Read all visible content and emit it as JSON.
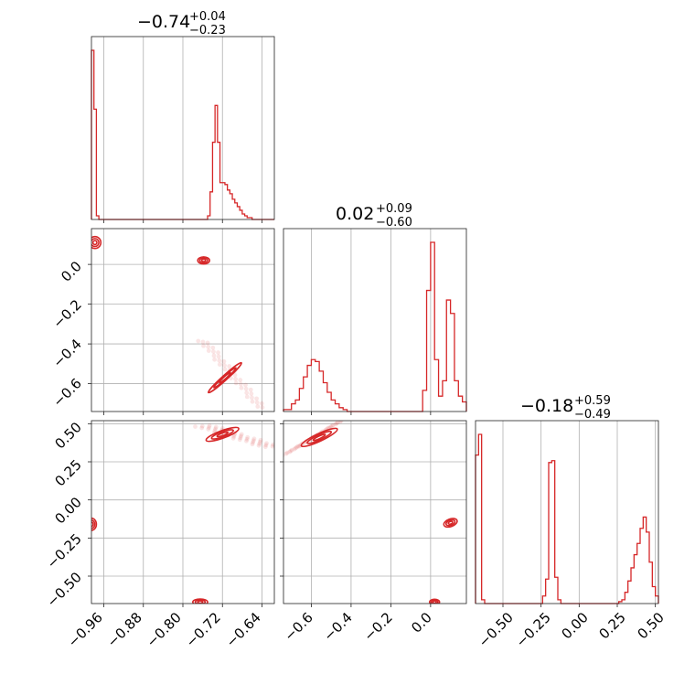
{
  "chart_data": {
    "type": "corner",
    "color": "#d62728",
    "grid": true,
    "parameters": [
      {
        "title_value": "−0.74",
        "title_plus": "+0.04",
        "title_minus": "−0.23",
        "range": [
          -0.985,
          -0.615
        ],
        "ticks": [
          -0.96,
          -0.88,
          -0.8,
          -0.72,
          -0.64
        ],
        "tick_labels": [
          "−0.96",
          "−0.88",
          "−0.80",
          "−0.72",
          "−0.64"
        ]
      },
      {
        "title_value": "0.02",
        "title_plus": "+0.09",
        "title_minus": "−0.60",
        "range": [
          -0.74,
          0.18
        ],
        "ticks": [
          -0.6,
          -0.4,
          -0.2,
          0.0
        ],
        "tick_labels": [
          "−0.6",
          "−0.4",
          "−0.2",
          "0.0"
        ]
      },
      {
        "title_value": "−0.18",
        "title_plus": "+0.59",
        "title_minus": "−0.49",
        "range": [
          -0.68,
          0.52
        ],
        "ticks": [
          -0.5,
          -0.25,
          0.0,
          0.25,
          0.5
        ],
        "tick_labels": [
          "−0.50",
          "−0.25",
          "0.00",
          "0.25",
          "0.50"
        ]
      }
    ],
    "histograms": [
      {
        "x": [
          -0.985,
          -0.98,
          -0.975,
          -0.97,
          -0.965,
          -0.96,
          -0.955,
          -0.95,
          -0.945,
          -0.94,
          -0.935,
          -0.93,
          -0.925,
          -0.92,
          -0.915,
          -0.91,
          -0.905,
          -0.9,
          -0.895,
          -0.89,
          -0.885,
          -0.88,
          -0.875,
          -0.87,
          -0.865,
          -0.86,
          -0.855,
          -0.85,
          -0.845,
          -0.84,
          -0.835,
          -0.83,
          -0.825,
          -0.82,
          -0.815,
          -0.81,
          -0.805,
          -0.8,
          -0.795,
          -0.79,
          -0.785,
          -0.78,
          -0.775,
          -0.77,
          -0.765,
          -0.76,
          -0.755,
          -0.75,
          -0.745,
          -0.74,
          -0.735,
          -0.73,
          -0.725,
          -0.72,
          -0.715,
          -0.71,
          -0.705,
          -0.7,
          -0.695,
          -0.69,
          -0.685,
          -0.68,
          -0.675,
          -0.67,
          -0.665,
          -0.66,
          -0.655,
          -0.65,
          -0.645,
          -0.64,
          -0.635,
          -0.63,
          -0.625,
          -0.62
        ],
        "values": [
          0.92,
          0.6,
          0.02,
          0,
          0,
          0,
          0,
          0,
          0,
          0,
          0,
          0,
          0,
          0,
          0,
          0,
          0,
          0,
          0,
          0,
          0,
          0,
          0,
          0,
          0,
          0,
          0,
          0,
          0,
          0,
          0,
          0,
          0,
          0,
          0,
          0,
          0,
          0,
          0,
          0,
          0,
          0,
          0,
          0,
          0,
          0,
          0,
          0.02,
          0.15,
          0.42,
          0.62,
          0.42,
          0.2,
          0.2,
          0.19,
          0.16,
          0.14,
          0.11,
          0.09,
          0.07,
          0.05,
          0.03,
          0.02,
          0.01,
          0.01,
          0,
          0,
          0,
          0,
          0,
          0,
          0,
          0,
          0
        ]
      },
      {
        "x": [
          -0.74,
          -0.72,
          -0.7,
          -0.68,
          -0.66,
          -0.64,
          -0.62,
          -0.6,
          -0.58,
          -0.56,
          -0.54,
          -0.52,
          -0.5,
          -0.48,
          -0.46,
          -0.44,
          -0.42,
          -0.4,
          -0.38,
          -0.36,
          -0.34,
          -0.32,
          -0.3,
          -0.28,
          -0.26,
          -0.24,
          -0.22,
          -0.2,
          -0.18,
          -0.16,
          -0.14,
          -0.12,
          -0.1,
          -0.08,
          -0.06,
          -0.04,
          -0.02,
          0.0,
          0.02,
          0.04,
          0.06,
          0.08,
          0.1,
          0.12,
          0.14,
          0.16
        ],
        "values": [
          0.01,
          0.01,
          0.04,
          0.06,
          0.12,
          0.18,
          0.24,
          0.27,
          0.26,
          0.21,
          0.15,
          0.1,
          0.06,
          0.04,
          0.02,
          0.01,
          0.0,
          0,
          0,
          0,
          0,
          0,
          0,
          0,
          0,
          0,
          0,
          0,
          0,
          0,
          0,
          0,
          0,
          0,
          0,
          0.11,
          0.63,
          0.88,
          0.27,
          0.08,
          0.16,
          0.58,
          0.51,
          0.16,
          0.08,
          0.05
        ]
      },
      {
        "x": [
          -0.68,
          -0.66,
          -0.64,
          -0.62,
          -0.6,
          -0.58,
          -0.56,
          -0.54,
          -0.52,
          -0.5,
          -0.48,
          -0.46,
          -0.44,
          -0.42,
          -0.4,
          -0.38,
          -0.36,
          -0.34,
          -0.32,
          -0.3,
          -0.28,
          -0.26,
          -0.24,
          -0.22,
          -0.2,
          -0.18,
          -0.16,
          -0.14,
          -0.12,
          -0.1,
          -0.08,
          -0.06,
          -0.04,
          -0.02,
          0.0,
          0.02,
          0.04,
          0.06,
          0.08,
          0.1,
          0.12,
          0.14,
          0.16,
          0.18,
          0.2,
          0.22,
          0.24,
          0.26,
          0.28,
          0.3,
          0.32,
          0.34,
          0.36,
          0.38,
          0.4,
          0.42,
          0.44,
          0.46,
          0.48,
          0.5
        ],
        "values": [
          0.79,
          0.9,
          0.02,
          0.0,
          0,
          0,
          0,
          0,
          0,
          0,
          0,
          0,
          0,
          0,
          0,
          0,
          0,
          0,
          0,
          0,
          0,
          0,
          0.04,
          0.13,
          0.75,
          0.76,
          0.14,
          0.02,
          0,
          0,
          0,
          0,
          0,
          0,
          0,
          0,
          0,
          0,
          0,
          0,
          0,
          0,
          0,
          0,
          0,
          0,
          0,
          0.01,
          0.02,
          0.06,
          0.12,
          0.19,
          0.26,
          0.32,
          0.4,
          0.46,
          0.38,
          0.22,
          0.09,
          0.04
        ]
      }
    ],
    "panels_2d": [
      {
        "row": 1,
        "col": 0,
        "contours": [
          {
            "cx": -0.978,
            "cy": 0.11,
            "rx": 0.012,
            "ry": 0.03,
            "rot": 0,
            "levels": 3
          },
          {
            "cx": -0.758,
            "cy": 0.02,
            "rx": 0.012,
            "ry": 0.018,
            "rot": 0,
            "levels": 3
          },
          {
            "cx": -0.715,
            "cy": -0.57,
            "rx": 0.045,
            "ry": 0.012,
            "rot": -42,
            "levels": 3
          }
        ],
        "clouds": [
          {
            "x0": -0.76,
            "y0": -0.38,
            "x1": -0.64,
            "y1": -0.72,
            "width": 0.018
          }
        ]
      },
      {
        "row": 2,
        "col": 0,
        "contours": [
          {
            "cx": -0.985,
            "cy": -0.16,
            "rx": 0.01,
            "ry": 0.04,
            "rot": 0,
            "levels": 3
          },
          {
            "cx": -0.72,
            "cy": 0.43,
            "rx": 0.035,
            "ry": 0.025,
            "rot": -20,
            "levels": 3
          },
          {
            "cx": -0.765,
            "cy": -0.67,
            "rx": 0.015,
            "ry": 0.02,
            "rot": 0,
            "levels": 3
          }
        ],
        "clouds": [
          {
            "x0": -0.76,
            "y0": 0.49,
            "x1": -0.62,
            "y1": 0.35,
            "width": 0.03
          }
        ]
      },
      {
        "row": 2,
        "col": 1,
        "contours": [
          {
            "cx": -0.56,
            "cy": 0.41,
            "rx": 0.1,
            "ry": 0.025,
            "rot": -25,
            "levels": 3
          },
          {
            "cx": 0.1,
            "cy": -0.15,
            "rx": 0.035,
            "ry": 0.025,
            "rot": -20,
            "levels": 3
          },
          {
            "cx": 0.02,
            "cy": -0.67,
            "rx": 0.025,
            "ry": 0.018,
            "rot": 0,
            "levels": 3
          }
        ],
        "clouds": [
          {
            "x0": -0.73,
            "y0": 0.3,
            "x1": -0.45,
            "y1": 0.52,
            "width": 0.03
          }
        ]
      }
    ]
  }
}
